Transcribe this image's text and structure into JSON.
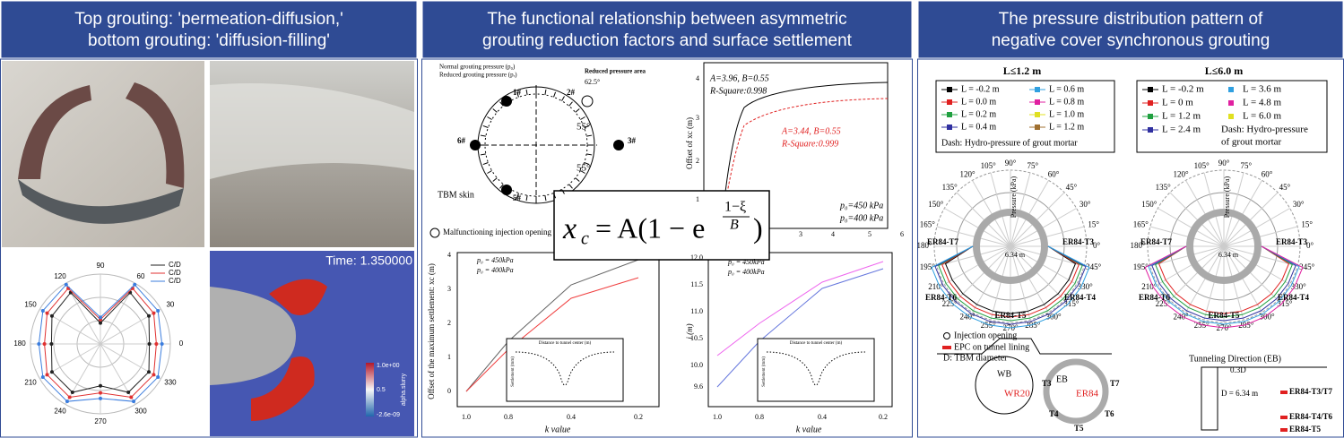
{
  "panel1": {
    "title": [
      "Top grouting: 'permeation-diffusion,'",
      "bottom grouting: 'diffusion-filling'"
    ],
    "polar_angles": [
      "0",
      "30",
      "60",
      "90",
      "120",
      "150",
      "180",
      "210",
      "240",
      "270",
      "300",
      "330"
    ],
    "legend": [
      "C/D",
      "C/D",
      "C/D"
    ],
    "time": "Time: 1.350000",
    "colorbar_ticks": [
      "1.0e+00",
      "0.5",
      "-2.6e-09"
    ],
    "colorbar_title": "alpha.slurry"
  },
  "panel2": {
    "title": [
      "The functional relationship between asymmetric",
      "grouting reduction factors and surface settlement"
    ],
    "formula": {
      "lhs": "x",
      "sub": "c",
      "mid": "= A(1 − e",
      "num": "1−ξ",
      "den": "B",
      "end": ")"
    },
    "texts": [
      "Normal grouting pressure (p₀)",
      "Reduced grouting pressure (pᵣ)",
      "Reduced pressure area",
      "62.5°",
      "1#",
      "2#",
      "3#",
      "5#",
      "6#",
      "55°",
      "55°",
      "TBM skin",
      "Malfunctioning injection opening",
      "A=3.96, B=0.55",
      "R-Square:0.998",
      "A=3.44, B=0.55",
      "R-Square:0.999",
      "p₀=450 kPa",
      "p₀=400 kPa",
      "Offset of xc (m)",
      "1",
      "2",
      "3",
      "4",
      "3",
      "4",
      "5",
      "6",
      "Offset of the maximum settlement: xc (m)",
      "k value",
      "1.0",
      "0.8",
      "0.4",
      "0.2",
      "p₀ = 450kPa",
      "p₀ = 400kPa",
      "0",
      "1",
      "2",
      "3",
      "4",
      "Distance to tunnel center (m)",
      "Settlement (mm)",
      "i (m)",
      "k value",
      "1.0",
      "0.8",
      "0.4",
      "0.2",
      "p₀ = 450kPa",
      "p₀ = 400kPa",
      "9.6",
      "10.0",
      "10.5",
      "11.0",
      "11.5",
      "12.0",
      "Distance to tunnel center (m)",
      "Settlement (mm)"
    ]
  },
  "panel3": {
    "title": [
      "The pressure distribution pattern of",
      "negative cover synchronous grouting"
    ],
    "subtitles": [
      "L≤1.2 m",
      "L≤6.0 m"
    ],
    "legend_left": [
      "L = -0.2 m",
      "L = 0.0 m",
      "L = 0.2 m",
      "L = 0.4 m",
      "L = 0.6 m",
      "L = 0.8 m",
      "L = 1.0 m",
      "L = 1.2 m",
      "Dash: Hydro-pressure of grout mortar"
    ],
    "legend_right": [
      "L = -0.2 m",
      "L = 0 m",
      "L = 1.2 m",
      "L = 2.4 m",
      "L = 3.6 m",
      "L = 4.8 m",
      "L = 6.0 m",
      "Dash: Hydro-pressure",
      "of grout mortar"
    ],
    "polar_angles": [
      "0°",
      "15°",
      "30°",
      "45°",
      "60°",
      "75°",
      "90°",
      "105°",
      "120°",
      "135°",
      "150°",
      "165°",
      "180°",
      "195°",
      "210°",
      "225°",
      "240°",
      "255°",
      "270°",
      "285°",
      "300°",
      "315°",
      "330°",
      "345°"
    ],
    "polar_labels": [
      "ER84-T7",
      "ER84-T3",
      "ER84-T6",
      "ER84-T4",
      "ER84-T5",
      "Pressure (kPa)",
      "6.34 m"
    ],
    "bottom": [
      "Injection opening",
      "EPC on tunnel lining",
      "D: TBM diameter",
      "WB",
      "EB",
      "WR20",
      "ER84",
      "T3",
      "T7",
      "T4",
      "T6",
      "T5",
      "Tunneling Direction (EB)",
      "0.3D",
      "D = 6.34 m",
      "ER84-T3/T7",
      "ER84-T4/T6",
      "ER84-T5"
    ]
  }
}
